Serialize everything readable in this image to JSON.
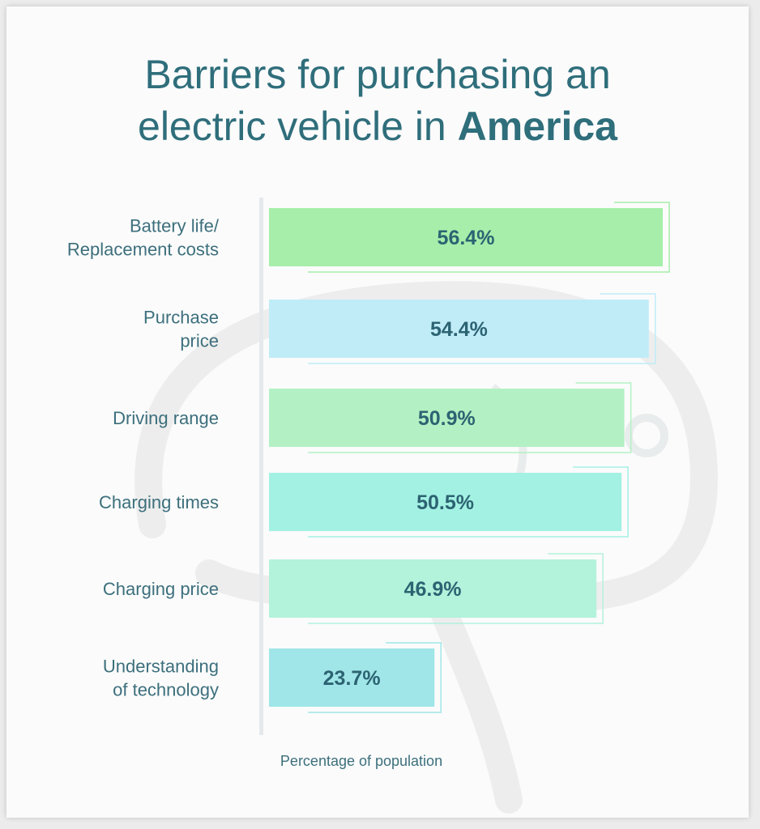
{
  "title": {
    "line1": "Barriers for purchasing an",
    "line2_prefix": "electric vehicle in ",
    "line2_strong": "America"
  },
  "chart_data": {
    "type": "bar",
    "orientation": "horizontal",
    "categories": [
      [
        "Battery life/",
        "Replacement costs"
      ],
      [
        "Purchase",
        "price"
      ],
      [
        "Driving range"
      ],
      [
        "Charging times"
      ],
      [
        "Charging price"
      ],
      [
        "Understanding",
        "of technology"
      ]
    ],
    "values": [
      56.4,
      54.4,
      50.9,
      50.5,
      46.9,
      23.7
    ],
    "value_labels": [
      "56.4%",
      "54.4%",
      "50.9%",
      "50.5%",
      "46.9%",
      "23.7%"
    ],
    "bar_colors": [
      "#a6eeaa",
      "#c0ecf8",
      "#b3f1c4",
      "#a3f1e3",
      "#b3f2db",
      "#a0e6e8"
    ],
    "xlabel": "Percentage of population",
    "ylabel": "",
    "xlim": [
      0,
      56.4
    ],
    "grid": false,
    "legend": "none"
  },
  "colors": {
    "title": "#2f6e7b",
    "value_text": "#2c6372",
    "category_text": "#3c6f7c"
  }
}
